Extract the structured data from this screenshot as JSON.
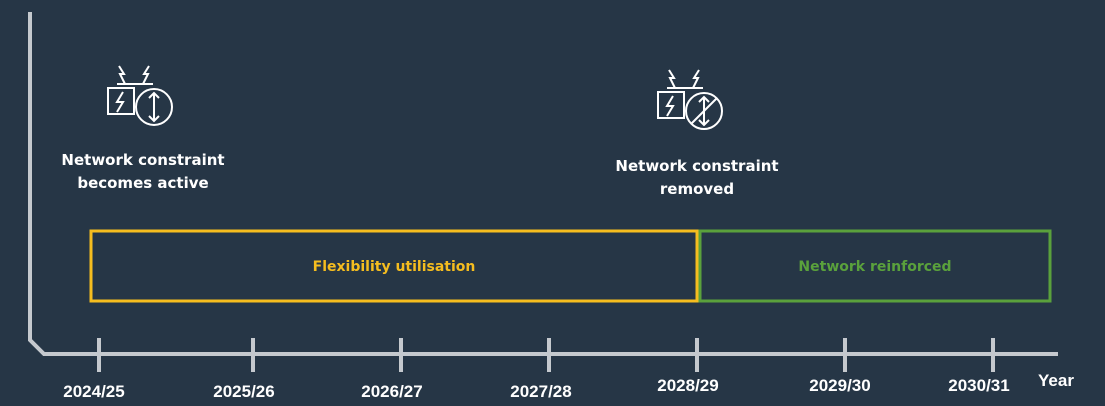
{
  "events": [
    {
      "lines": [
        "Network constraint",
        "becomes active"
      ]
    },
    {
      "lines": [
        "Network constraint",
        "removed"
      ]
    }
  ],
  "phases": [
    {
      "label": "Flexibility utilisation"
    },
    {
      "label": "Network reinforced"
    }
  ],
  "axis": {
    "label": "Year",
    "years": [
      "2024/25",
      "2025/26",
      "2026/27",
      "2027/28",
      "2028/29",
      "2029/30",
      "2030/31"
    ]
  }
}
